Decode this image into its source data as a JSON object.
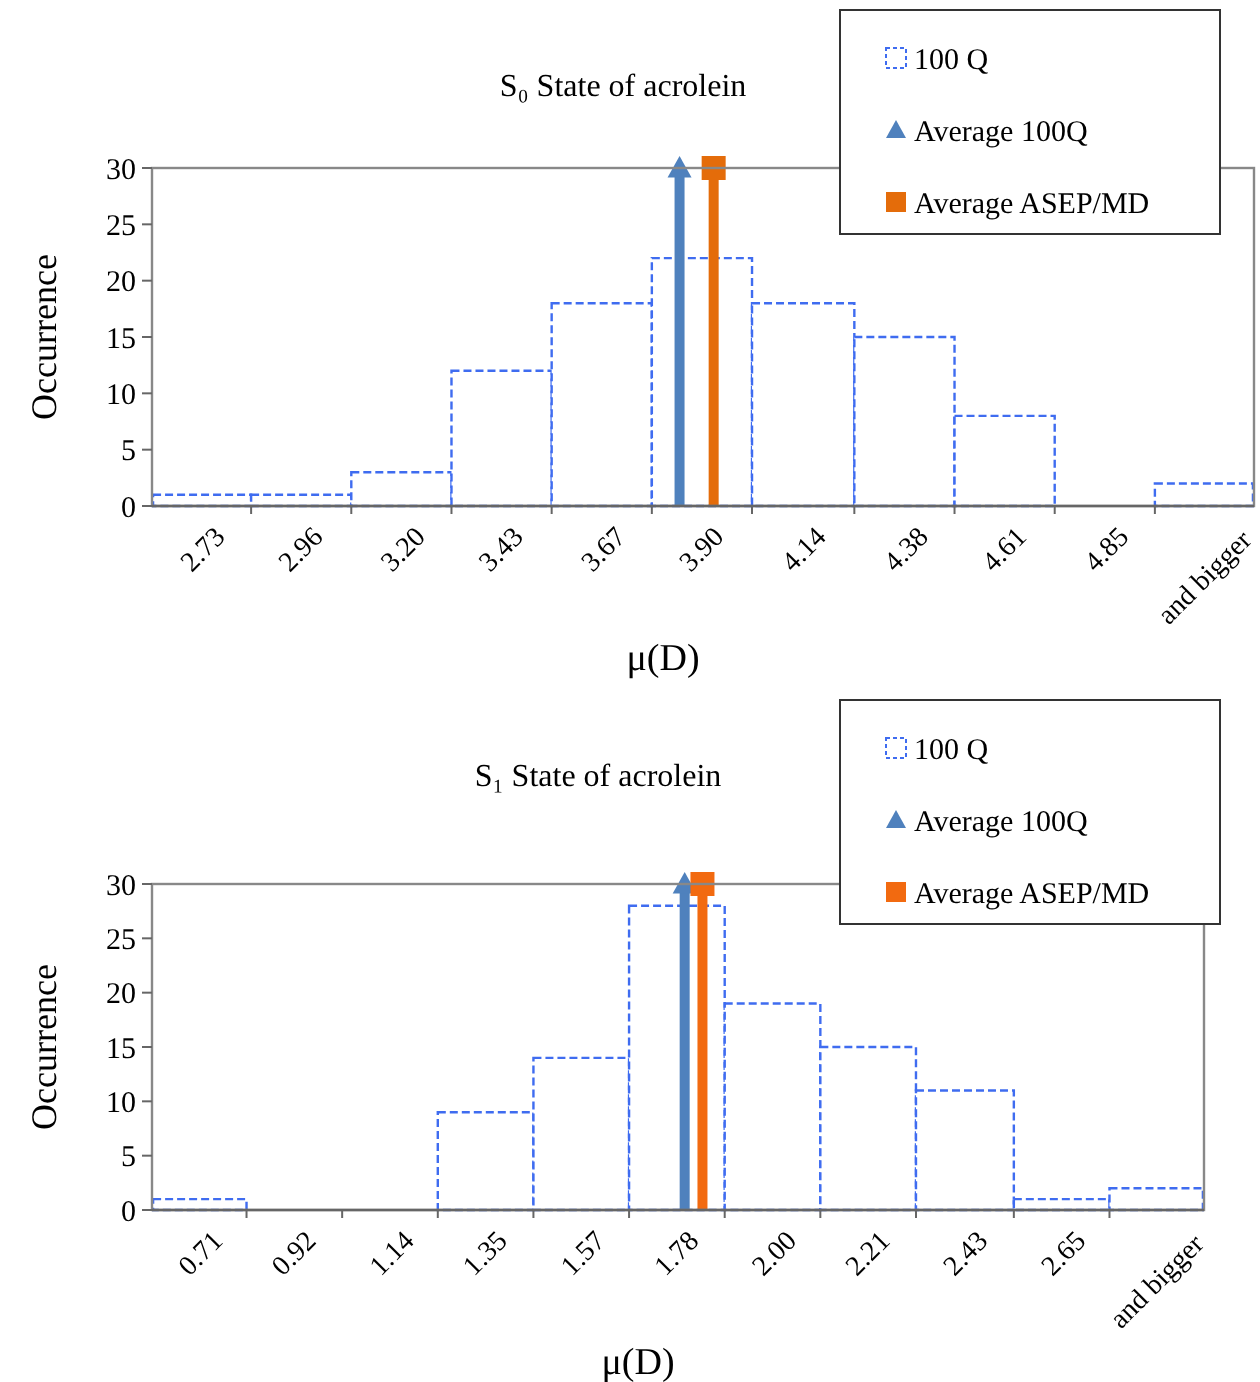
{
  "chart_data": [
    {
      "type": "bar",
      "title": "S₀  State of acrolein",
      "xlabel": "μ(D)",
      "ylabel": "Occurrence",
      "x": [
        2.73,
        2.96,
        3.2,
        3.43,
        3.67,
        3.9,
        4.14,
        4.38,
        4.61,
        4.85,
        5.08
      ],
      "series": [
        {
          "name": "100 Q",
          "color": "#3f6cf0",
          "values": [
            1,
            1,
            3,
            12,
            18,
            22,
            18,
            15,
            8,
            0,
            2
          ]
        },
        {
          "name": "Average 100Q",
          "type": "line",
          "color": "#4f81bd",
          "marker": "triangle",
          "x": [
            3.85,
            3.85
          ],
          "values": [
            0,
            30
          ]
        },
        {
          "name": "Average ASEP/MD",
          "type": "line",
          "color": "#e46c0a",
          "marker": "square",
          "x": [
            3.93,
            3.93
          ],
          "values": [
            0,
            30
          ]
        }
      ],
      "xlim": [
        2.6125,
        5.1975
      ],
      "xticks": [
        2.73,
        2.96,
        {
          "value": 3.2,
          "label": "3.20"
        },
        3.43,
        3.67,
        {
          "value": 3.9,
          "label": "3.90"
        },
        4.14,
        4.38,
        4.61,
        4.85,
        {
          "value": 5.08,
          "label": "and bigger"
        }
      ],
      "ylim": [
        0,
        30
      ],
      "yticks": [
        0,
        5,
        10,
        15,
        20,
        25,
        30
      ],
      "grid": false,
      "legend": "top right"
    },
    {
      "type": "bar",
      "title": "S₁  State of acrolein",
      "xlabel": "μ(D)",
      "ylabel": "Occurrence",
      "x": [
        0.71,
        0.92,
        1.14,
        1.35,
        1.57,
        1.78,
        2.0,
        2.21,
        2.43,
        2.65,
        2.86
      ],
      "series": [
        {
          "name": "100 Q",
          "color": "#3f6cf0",
          "values": [
            1,
            0,
            0,
            9,
            14,
            28,
            19,
            15,
            11,
            1,
            2
          ]
        },
        {
          "name": "Average 100Q",
          "type": "line",
          "color": "#4f81bd",
          "marker": "triangle",
          "x": [
            1.8,
            1.8
          ],
          "values": [
            0,
            30
          ]
        },
        {
          "name": "Average ASEP/MD",
          "type": "line",
          "color": "#f26a10",
          "marker": "square",
          "x": [
            1.84,
            1.84
          ],
          "values": [
            0,
            30
          ]
        }
      ],
      "xlim": [
        0.6025,
        2.9675
      ],
      "xticks": [
        0.71,
        0.92,
        1.14,
        1.35,
        1.57,
        1.78,
        {
          "value": 2.0,
          "label": "2.00"
        },
        2.21,
        2.43,
        2.65,
        {
          "value": 2.86,
          "label": "and bigger"
        }
      ],
      "ylim": [
        0,
        30
      ],
      "yticks": [
        0,
        5,
        10,
        15,
        20,
        25,
        30
      ],
      "grid": false,
      "legend": "top right"
    }
  ]
}
